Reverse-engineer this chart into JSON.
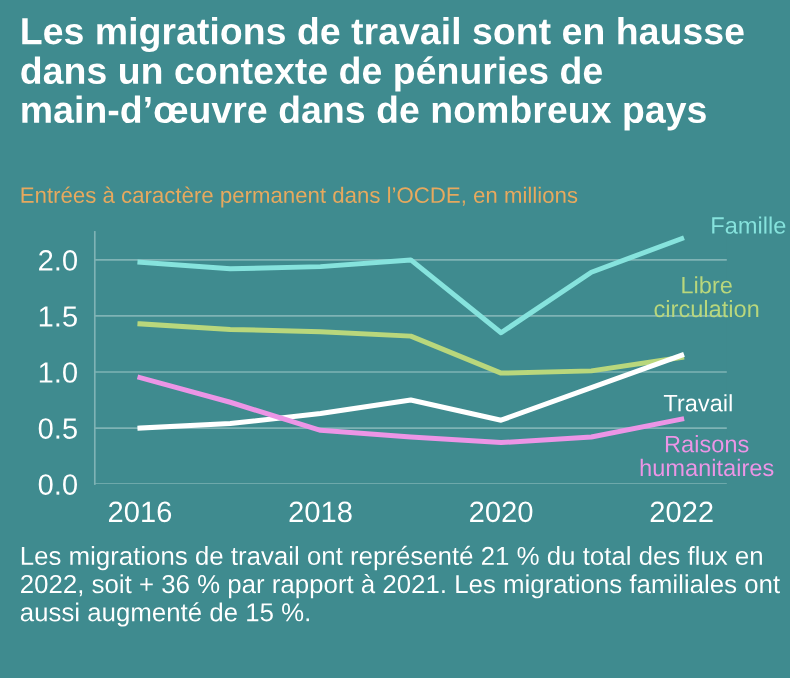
{
  "chart_data": {
    "type": "line",
    "title": "Les migrations de travail sont en hausse dans un contexte de pénuries de main-d’œuvre dans de nombreux pays",
    "subtitle": "Entrées à caractère permanent dans l’OCDE, en millions",
    "x": [
      2016,
      2017,
      2018,
      2019,
      2020,
      2021,
      2022
    ],
    "series": [
      {
        "name": "Famille",
        "color": "#86e3dd",
        "values": [
          1.98,
          1.92,
          1.94,
          2.0,
          1.35,
          1.89,
          2.19
        ]
      },
      {
        "name": "Libre circulation",
        "color": "#b9d77c",
        "values": [
          1.43,
          1.38,
          1.36,
          1.32,
          0.99,
          1.01,
          1.13
        ]
      },
      {
        "name": "Travail",
        "color": "#ffffff",
        "values": [
          0.5,
          0.54,
          0.63,
          0.75,
          0.57,
          0.86,
          1.15
        ]
      },
      {
        "name": "Raisons humanitaires",
        "color": "#ec95e6",
        "values": [
          0.95,
          0.73,
          0.48,
          0.42,
          0.37,
          0.42,
          0.58
        ]
      }
    ],
    "xlim": [
      2015.5,
      2022.5
    ],
    "xticks": [
      2016,
      2018,
      2020,
      2022
    ],
    "ylim": [
      0,
      2.25
    ],
    "yticks": [
      {
        "value": 0,
        "label": "0.0"
      },
      {
        "value": 0.5,
        "label": "0.5"
      },
      {
        "value": 1,
        "label": "1.0"
      },
      {
        "value": 1.5,
        "label": "1.5"
      },
      {
        "value": 2,
        "label": "2.0"
      }
    ],
    "grid": "y",
    "legend": false,
    "marker": "none",
    "line_style": "solid",
    "annotations": [
      "Les migrations de travail ont représenté 21 % du total des flux en 2022, soit + 36 % par rapport à 2021. Les migrations familiales ont aussi augmenté de 15 %."
    ]
  }
}
